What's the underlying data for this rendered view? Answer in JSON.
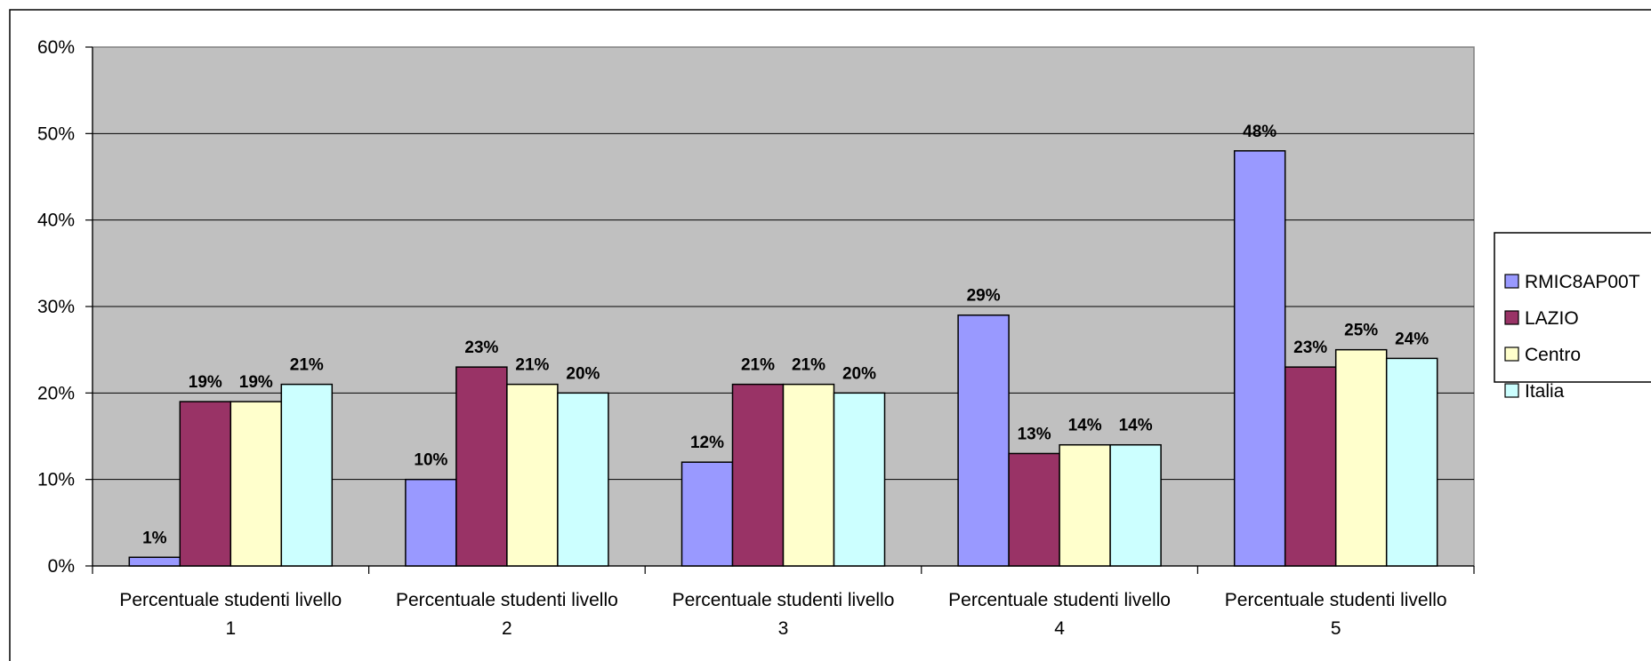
{
  "chart_data": {
    "type": "bar",
    "title": "",
    "xlabel": "",
    "ylabel": "",
    "ylim": [
      0,
      60
    ],
    "y_ticks": [
      "0%",
      "10%",
      "20%",
      "30%",
      "40%",
      "50%",
      "60%"
    ],
    "y_tick_values": [
      0,
      10,
      20,
      30,
      40,
      50,
      60
    ],
    "grid": true,
    "plot_background": "#c0c0c0",
    "legend_position": "right",
    "categories": [
      [
        "Percentuale studenti livello",
        "1"
      ],
      [
        "Percentuale studenti livello",
        "2"
      ],
      [
        "Percentuale studenti livello",
        "3"
      ],
      [
        "Percentuale studenti livello",
        "4"
      ],
      [
        "Percentuale studenti livello",
        "5"
      ]
    ],
    "series": [
      {
        "name": "RMIC8AP00T",
        "color": "#9999ff",
        "values": [
          1,
          10,
          12,
          29,
          48
        ],
        "labels": [
          "1%",
          "10%",
          "12%",
          "29%",
          "48%"
        ]
      },
      {
        "name": "LAZIO",
        "color": "#993366",
        "values": [
          19,
          23,
          21,
          13,
          23
        ],
        "labels": [
          "19%",
          "23%",
          "21%",
          "13%",
          "23%"
        ]
      },
      {
        "name": "Centro",
        "color": "#ffffcc",
        "values": [
          19,
          21,
          21,
          14,
          25
        ],
        "labels": [
          "19%",
          "21%",
          "21%",
          "14%",
          "25%"
        ]
      },
      {
        "name": "Italia",
        "color": "#ccffff",
        "values": [
          21,
          20,
          20,
          14,
          24
        ],
        "labels": [
          "21%",
          "20%",
          "20%",
          "14%",
          "24%"
        ]
      }
    ]
  }
}
